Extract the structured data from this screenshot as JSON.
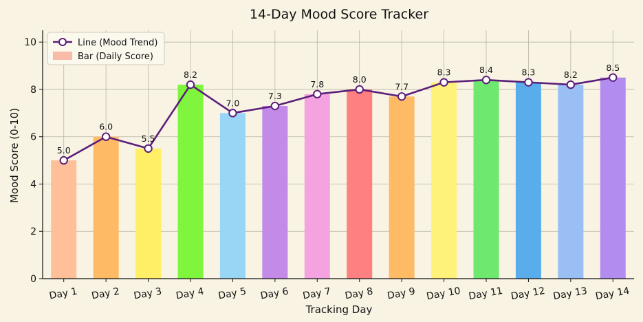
{
  "chart_data": {
    "type": "bar",
    "title": "14-Day Mood Score Tracker",
    "xlabel": "Tracking Day",
    "ylabel": "Mood Score (0-10)",
    "ylim": [
      0,
      10.5
    ],
    "yticks": [
      0,
      2,
      4,
      6,
      8,
      10
    ],
    "grid": true,
    "legend_position": "top-left",
    "categories": [
      "Day 1",
      "Day 2",
      "Day 3",
      "Day 4",
      "Day 5",
      "Day 6",
      "Day 7",
      "Day 8",
      "Day 9",
      "Day 10",
      "Day 11",
      "Day 12",
      "Day 13",
      "Day 14"
    ],
    "values": [
      5.0,
      6.0,
      5.5,
      8.2,
      7.0,
      7.3,
      7.8,
      8.0,
      7.7,
      8.3,
      8.4,
      8.3,
      8.2,
      8.5
    ],
    "data_labels": [
      "5.0",
      "6.0",
      "5.5",
      "8.2",
      "7.0",
      "7.3",
      "7.8",
      "8.0",
      "7.7",
      "8.3",
      "8.4",
      "8.3",
      "8.2",
      "8.5"
    ],
    "bar_colors": [
      "#ffbf99",
      "#ffba66",
      "#ffef66",
      "#80f53d",
      "#99d6f5",
      "#c48ae8",
      "#f5a3e0",
      "#ff8080",
      "#ffba66",
      "#fff27a",
      "#6ee86e",
      "#5aadeb",
      "#99bff5",
      "#b38cf0"
    ],
    "line_color": "#5b1f7a",
    "legend": [
      {
        "label": "Line (Mood Trend)",
        "kind": "line"
      },
      {
        "label": "Bar (Daily Score)",
        "kind": "bar",
        "color": "#f7bba8"
      }
    ]
  }
}
